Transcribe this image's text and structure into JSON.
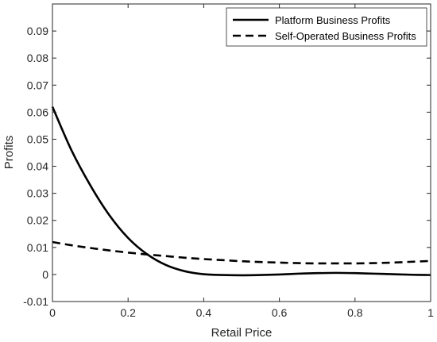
{
  "chart_data": {
    "type": "line",
    "xlabel": "Retail Price",
    "ylabel": "Profits",
    "xlim": [
      0,
      1
    ],
    "ylim": [
      -0.01,
      0.1
    ],
    "x_ticks": [
      0,
      0.2,
      0.4,
      0.6,
      0.8,
      1
    ],
    "x_tick_labels": [
      "0",
      "0.2",
      "0.4",
      "0.6",
      "0.8",
      "1"
    ],
    "y_ticks": [
      -0.01,
      0,
      0.01,
      0.02,
      0.03,
      0.04,
      0.05,
      0.06,
      0.07,
      0.08,
      0.09
    ],
    "y_tick_labels": [
      "-0.01",
      "0",
      "0.01",
      "0.02",
      "0.03",
      "0.04",
      "0.05",
      "0.06",
      "0.07",
      "0.08",
      "0.09"
    ],
    "grid": false,
    "legend_position": "top-right",
    "series": [
      {
        "name": "Platform Business Profits",
        "style": "solid",
        "color": "#000000",
        "x": [
          0,
          0.05,
          0.1,
          0.15,
          0.2,
          0.25,
          0.3,
          0.35,
          0.4,
          0.45,
          0.5,
          0.55,
          0.6,
          0.65,
          0.7,
          0.75,
          0.8,
          0.85,
          0.9,
          0.95,
          1.0
        ],
        "y": [
          0.062,
          0.046,
          0.033,
          0.022,
          0.0135,
          0.0075,
          0.0035,
          0.0012,
          0.0001,
          -0.0002,
          -0.0003,
          -0.0002,
          0.0,
          0.0003,
          0.0005,
          0.0006,
          0.0005,
          0.0003,
          0.0001,
          -0.0001,
          -0.0002
        ]
      },
      {
        "name": "Self-Operated Business Profits",
        "style": "dashed",
        "color": "#000000",
        "x": [
          0,
          0.05,
          0.1,
          0.15,
          0.2,
          0.25,
          0.3,
          0.35,
          0.4,
          0.45,
          0.5,
          0.55,
          0.6,
          0.65,
          0.7,
          0.75,
          0.8,
          0.85,
          0.9,
          0.95,
          1.0
        ],
        "y": [
          0.012,
          0.0108,
          0.0098,
          0.0089,
          0.0081,
          0.0074,
          0.0068,
          0.0062,
          0.0057,
          0.0053,
          0.0049,
          0.0046,
          0.0044,
          0.0042,
          0.0041,
          0.0041,
          0.0041,
          0.0042,
          0.0044,
          0.0047,
          0.005
        ]
      }
    ]
  }
}
